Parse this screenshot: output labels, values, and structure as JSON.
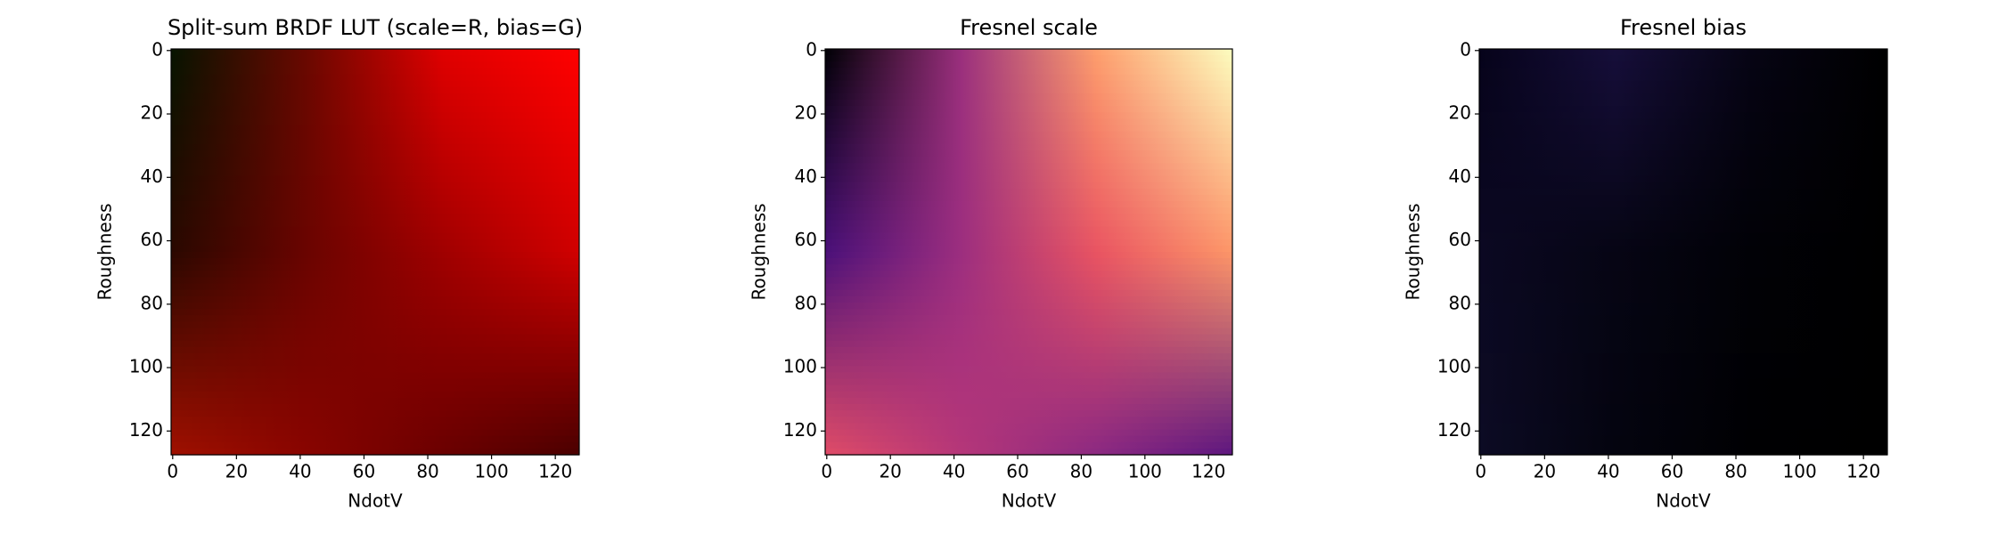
{
  "chart_data": [
    {
      "type": "heatmap",
      "title": "Split-sum BRDF LUT (scale=R, bias=G)",
      "xlabel": "NdotV",
      "ylabel": "Roughness",
      "xlim": [
        -0.5,
        127.5
      ],
      "ylim": [
        127.5,
        -0.5
      ],
      "xticks": [
        0,
        20,
        40,
        60,
        80,
        100,
        120
      ],
      "yticks": [
        0,
        20,
        40,
        60,
        80,
        100,
        120
      ]
    },
    {
      "type": "heatmap",
      "title": "Fresnel scale",
      "xlabel": "NdotV",
      "ylabel": "Roughness",
      "xlim": [
        -0.5,
        127.5
      ],
      "ylim": [
        127.5,
        -0.5
      ],
      "xticks": [
        0,
        20,
        40,
        60,
        80,
        100,
        120
      ],
      "yticks": [
        0,
        20,
        40,
        60,
        80,
        100,
        120
      ]
    },
    {
      "type": "heatmap",
      "title": "Fresnel bias",
      "xlabel": "NdotV",
      "ylabel": "Roughness",
      "xlim": [
        -0.5,
        127.5
      ],
      "ylim": [
        127.5,
        -0.5
      ],
      "xticks": [
        0,
        20,
        40,
        60,
        80,
        100,
        120
      ],
      "yticks": [
        0,
        20,
        40,
        60,
        80,
        100,
        120
      ]
    }
  ]
}
